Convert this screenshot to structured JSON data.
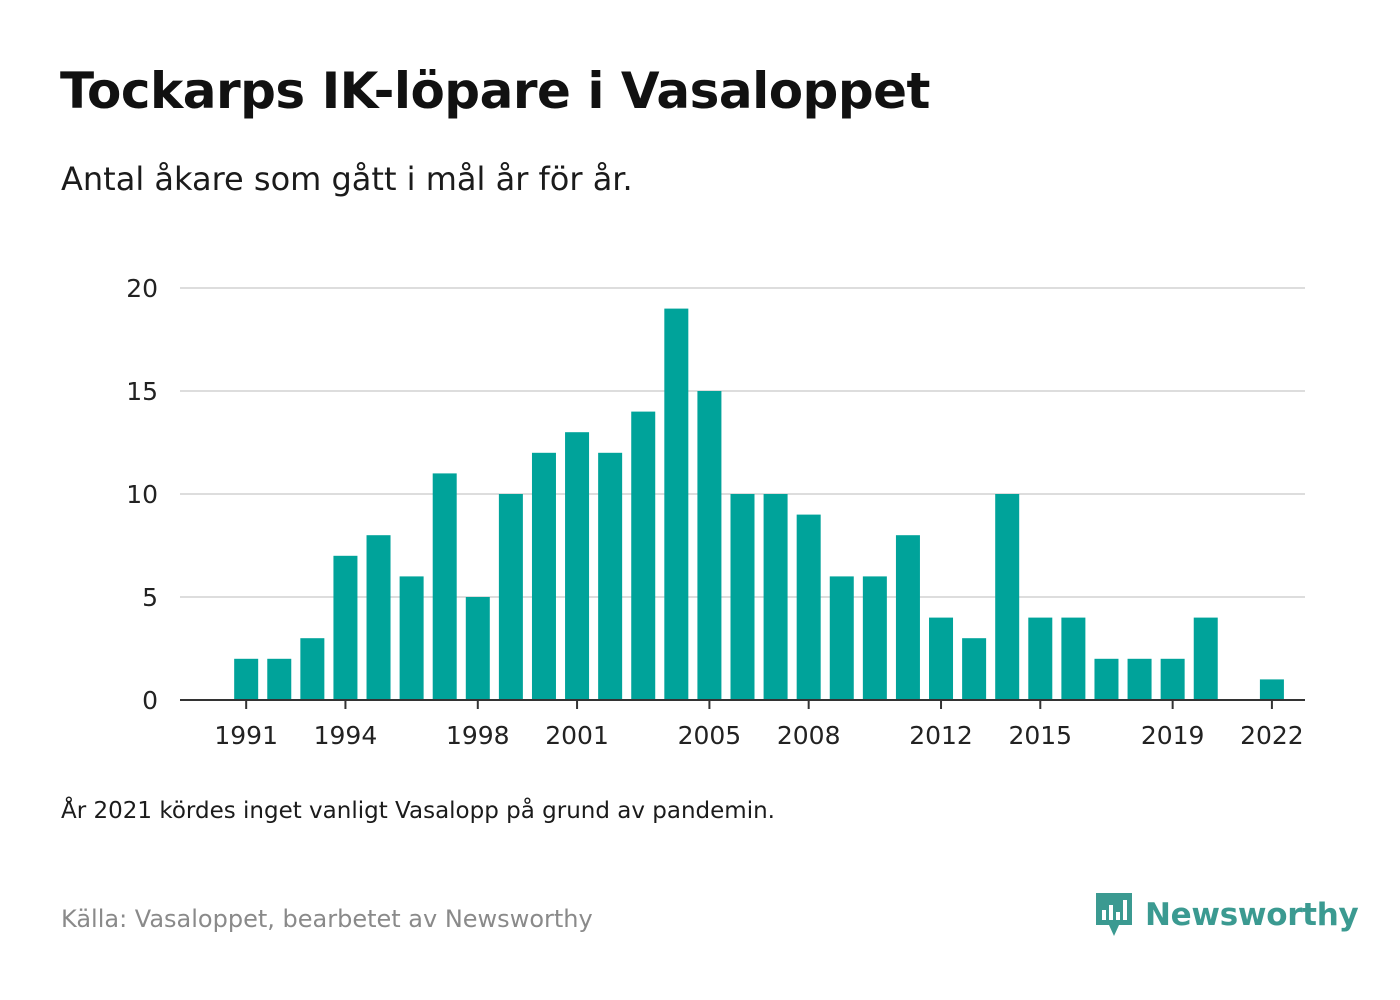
{
  "title": "Tockarps IK-löpare i Vasaloppet",
  "subtitle": "Antal åkare som gått i mål år för år.",
  "note": "År 2021 kördes inget vanligt Vasalopp på grund av pandemin.",
  "source": "Källa: Vasaloppet, bearbetet av Newsworthy",
  "brand": {
    "name": "Newsworthy",
    "icon": "newsworthy-logo-icon"
  },
  "colors": {
    "bar": "#00a39a",
    "grid": "#dddddd",
    "axis": "#333333",
    "brand": "#3b9a91"
  },
  "chart_data": {
    "type": "bar",
    "title": "Tockarps IK-löpare i Vasaloppet",
    "subtitle": "Antal åkare som gått i mål år för år.",
    "xlabel": "",
    "ylabel": "",
    "ylim": [
      0,
      20
    ],
    "grid": true,
    "yticks": [
      0,
      5,
      10,
      15,
      20
    ],
    "xticks": [
      1991,
      1994,
      1998,
      2001,
      2005,
      2008,
      2012,
      2015,
      2019,
      2022
    ],
    "xrange": [
      1989,
      2023
    ],
    "categories": [
      1991,
      1992,
      1993,
      1994,
      1995,
      1996,
      1997,
      1998,
      1999,
      2000,
      2001,
      2002,
      2003,
      2004,
      2005,
      2006,
      2007,
      2008,
      2009,
      2010,
      2011,
      2012,
      2013,
      2014,
      2015,
      2016,
      2017,
      2018,
      2019,
      2020,
      2021,
      2022
    ],
    "values": [
      2,
      2,
      3,
      7,
      8,
      6,
      11,
      5,
      10,
      12,
      13,
      12,
      14,
      19,
      15,
      10,
      10,
      9,
      6,
      6,
      8,
      4,
      3,
      10,
      4,
      4,
      2,
      2,
      2,
      4,
      0,
      1
    ]
  }
}
